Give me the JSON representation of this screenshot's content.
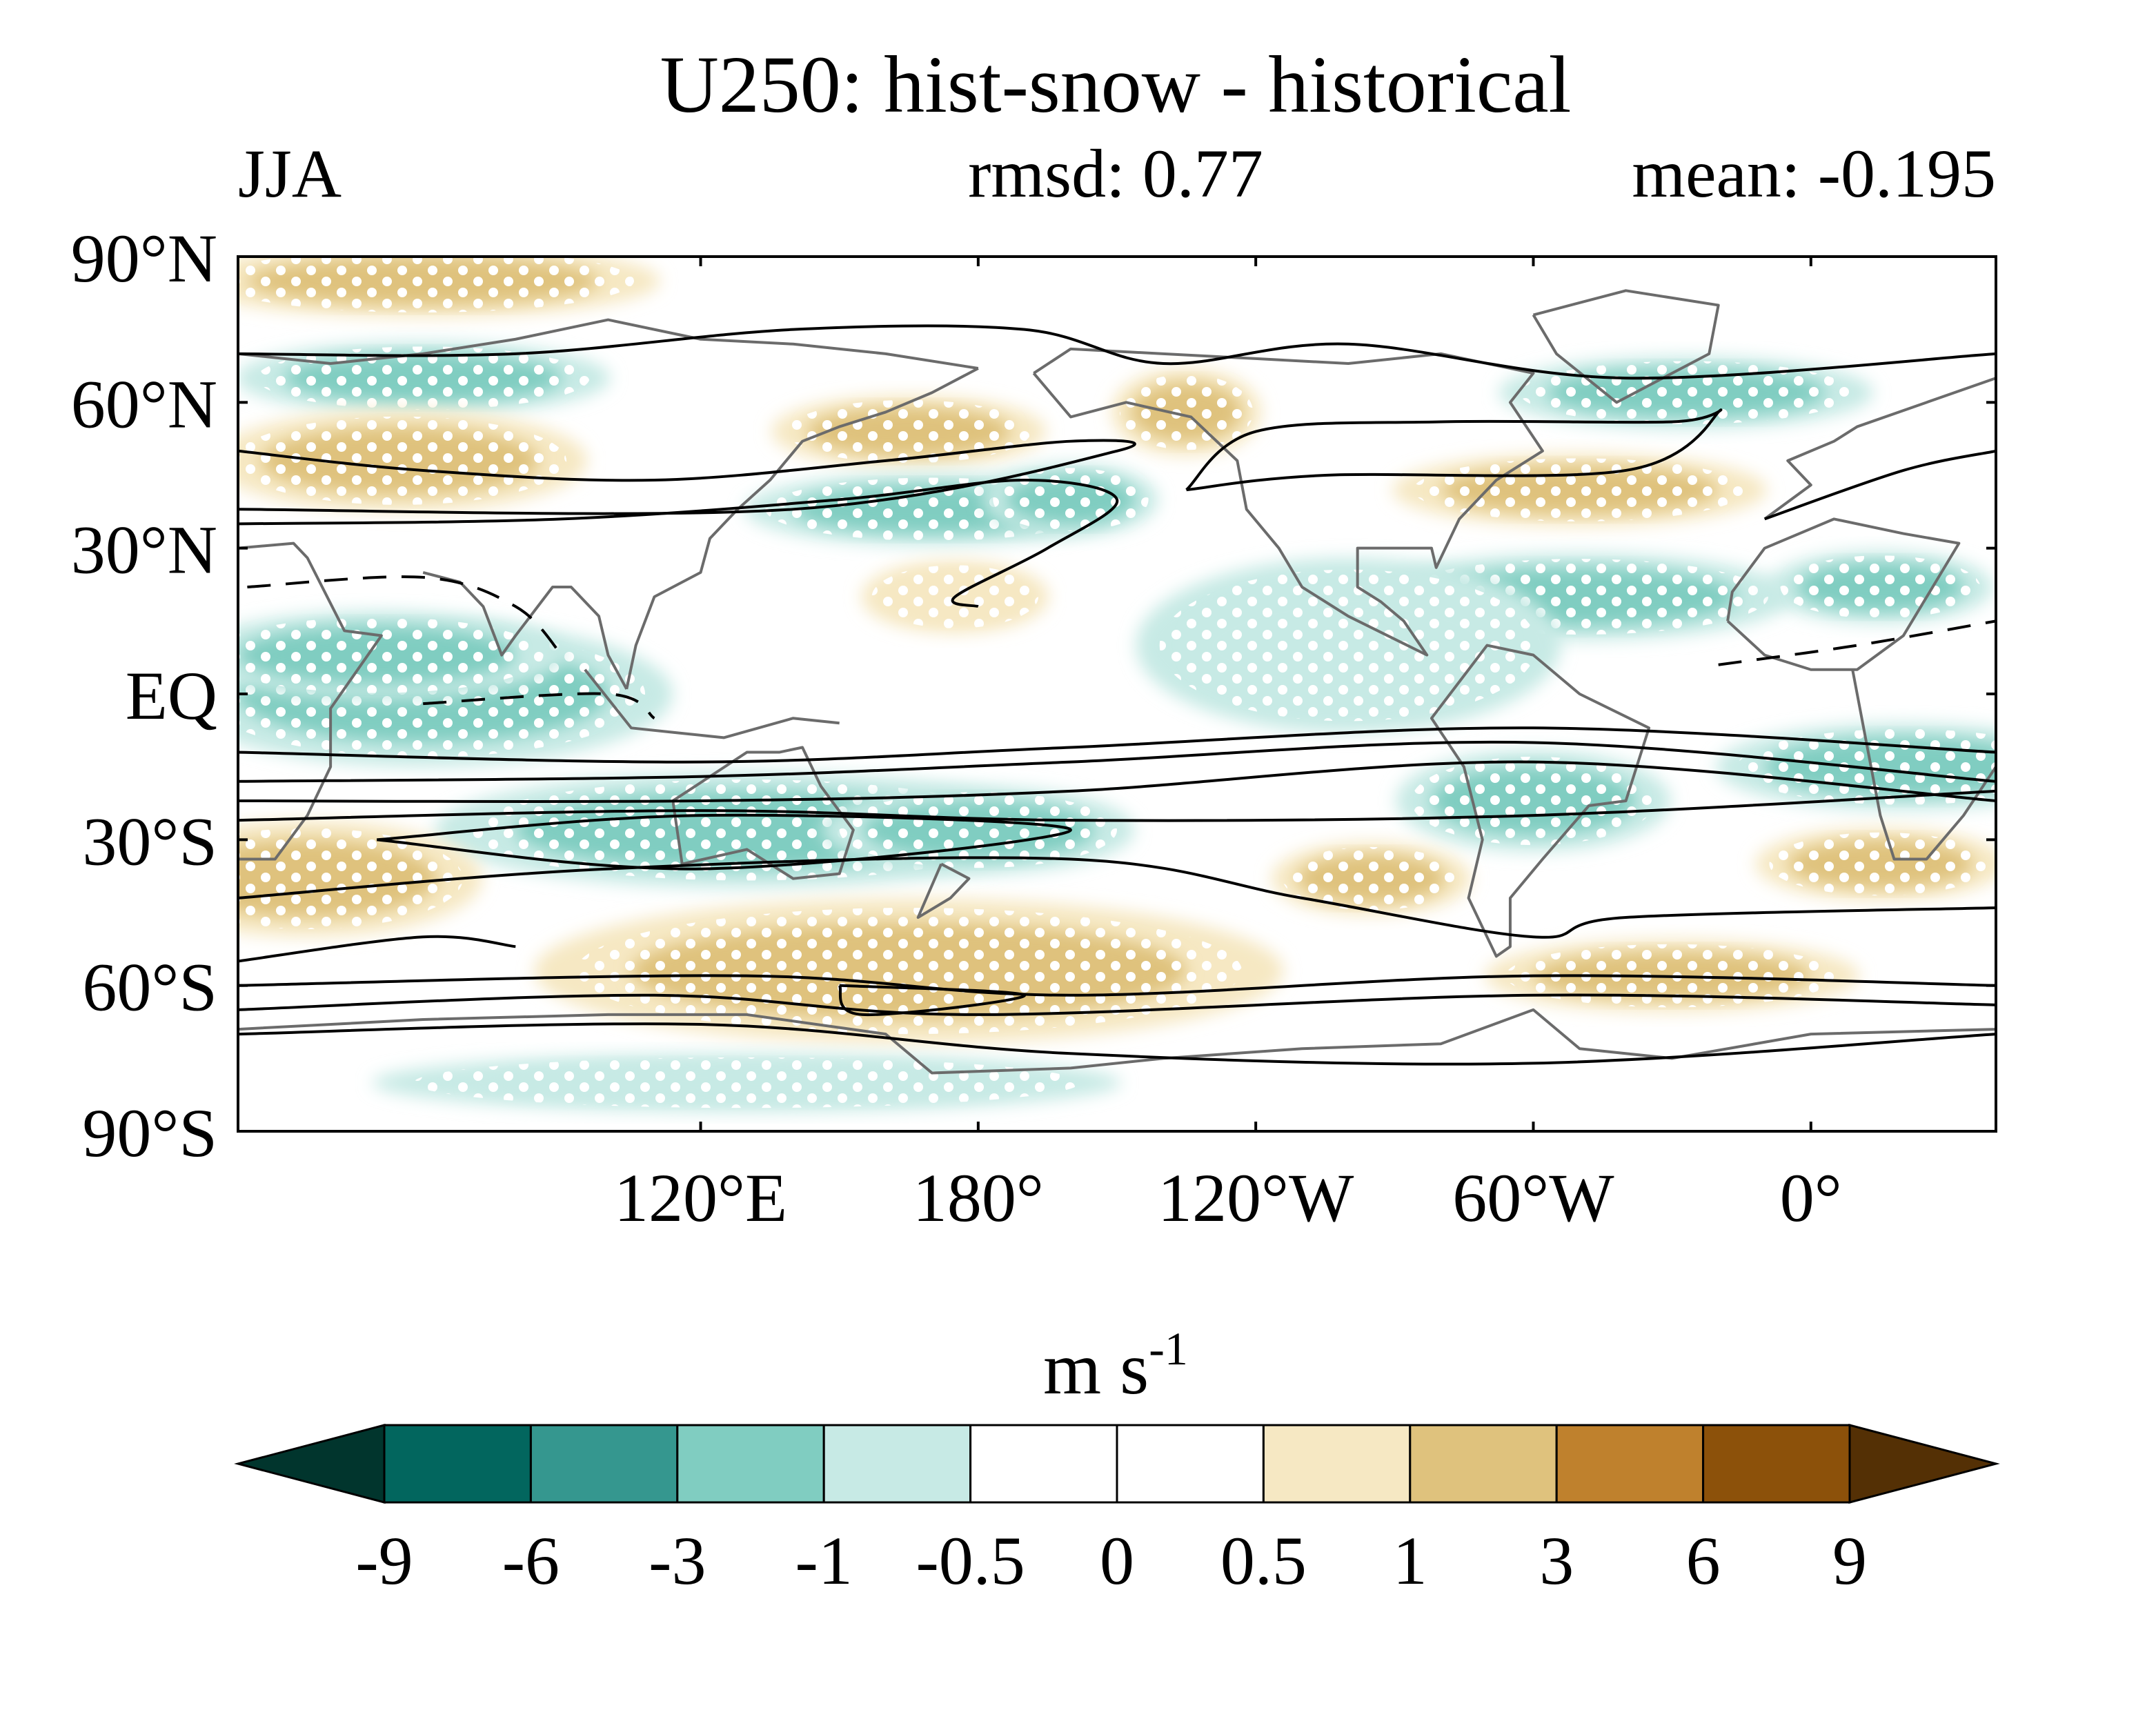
{
  "chart_data": {
    "type": "heatmap",
    "title": "U250: hist-snow - historical",
    "season": "JJA",
    "stats": {
      "rmsd_label": "rmsd: 0.77",
      "mean_label": "mean: -0.195"
    },
    "projection": "cylindrical-equidistant, centered on 150°W (map spans 20°E eastward to 40°E)",
    "lon_range": [
      20,
      400
    ],
    "lat_range": [
      -90,
      90
    ],
    "y_ticks": [
      {
        "lat": 90,
        "label": "90°N"
      },
      {
        "lat": 60,
        "label": "60°N"
      },
      {
        "lat": 30,
        "label": "30°N"
      },
      {
        "lat": 0,
        "label": "EQ"
      },
      {
        "lat": -30,
        "label": "30°S"
      },
      {
        "lat": -60,
        "label": "60°S"
      },
      {
        "lat": -90,
        "label": "90°S"
      }
    ],
    "x_ticks": [
      {
        "lon": 120,
        "label": "120°E"
      },
      {
        "lon": 180,
        "label": "180°"
      },
      {
        "lon": 240,
        "label": "120°W"
      },
      {
        "lon": 300,
        "label": "60°W"
      },
      {
        "lon": 360,
        "label": "0°"
      }
    ],
    "colorbar": {
      "units_main": "m s",
      "units_sup": "-1",
      "levels": [
        "-9",
        "-6",
        "-3",
        "-1",
        "-0.5",
        "0",
        "0.5",
        "1",
        "3",
        "6",
        "9"
      ],
      "colors": [
        "#01352d",
        "#02665e",
        "#35978f",
        "#80cdc1",
        "#c7eae5",
        "#ffffff",
        "#ffffff",
        "#f6e8c3",
        "#dfc27d",
        "#bf812d",
        "#8c510a",
        "#543005"
      ]
    },
    "anomaly_regions": [
      {
        "lon": 60,
        "lat": 85,
        "rx": 38,
        "ry": 5,
        "value": 1.2,
        "stippled": true
      },
      {
        "lon": 60,
        "lat": 65,
        "rx": 30,
        "ry": 5,
        "value": -2.0,
        "stippled": true
      },
      {
        "lon": 55,
        "lat": 48,
        "rx": 30,
        "ry": 7,
        "value": 2.0,
        "stippled": true
      },
      {
        "lon": 165,
        "lat": 54,
        "rx": 22,
        "ry": 5,
        "value": 1.5,
        "stippled": true
      },
      {
        "lon": 225,
        "lat": 58,
        "rx": 12,
        "ry": 6,
        "value": 1.5,
        "stippled": true
      },
      {
        "lon": 170,
        "lat": 38,
        "rx": 30,
        "ry": 5,
        "value": -2.0,
        "stippled": true
      },
      {
        "lon": 200,
        "lat": 40,
        "rx": 14,
        "ry": 5,
        "value": -2.5,
        "stippled": true
      },
      {
        "lon": 175,
        "lat": 20,
        "rx": 15,
        "ry": 5,
        "value": 0.8,
        "stippled": true
      },
      {
        "lon": 333,
        "lat": 62,
        "rx": 30,
        "ry": 5,
        "value": -2.0,
        "stippled": true
      },
      {
        "lon": 310,
        "lat": 42,
        "rx": 30,
        "ry": 5,
        "value": 1.5,
        "stippled": true
      },
      {
        "lon": 310,
        "lat": 20,
        "rx": 34,
        "ry": 6,
        "value": -2.0,
        "stippled": true
      },
      {
        "lon": 260,
        "lat": 10,
        "rx": 34,
        "ry": 12,
        "value": -0.8,
        "stippled": true
      },
      {
        "lon": 375,
        "lat": 22,
        "rx": 18,
        "ry": 5,
        "value": -2.0,
        "stippled": true
      },
      {
        "lon": 60,
        "lat": 0,
        "rx": 40,
        "ry": 10,
        "value": -2.5,
        "stippled": true
      },
      {
        "lon": 50,
        "lat": 8,
        "rx": 30,
        "ry": 6,
        "value": -2.0,
        "stippled": true
      },
      {
        "lon": 130,
        "lat": -28,
        "rx": 50,
        "ry": 8,
        "value": -1.5,
        "stippled": true
      },
      {
        "lon": 180,
        "lat": -28,
        "rx": 25,
        "ry": 6,
        "value": -2.0,
        "stippled": true
      },
      {
        "lon": 300,
        "lat": -22,
        "rx": 22,
        "ry": 7,
        "value": -2.0,
        "stippled": true
      },
      {
        "lon": 380,
        "lat": -15,
        "rx": 30,
        "ry": 6,
        "value": -2.0,
        "stippled": true
      },
      {
        "lon": 35,
        "lat": -38,
        "rx": 28,
        "ry": 8,
        "value": 2.0,
        "stippled": true
      },
      {
        "lon": 265,
        "lat": -38,
        "rx": 16,
        "ry": 5,
        "value": 2.0,
        "stippled": true
      },
      {
        "lon": 375,
        "lat": -35,
        "rx": 20,
        "ry": 5,
        "value": 1.5,
        "stippled": true
      },
      {
        "lon": 165,
        "lat": -57,
        "rx": 60,
        "ry": 10,
        "value": 2.0,
        "stippled": true
      },
      {
        "lon": 330,
        "lat": -58,
        "rx": 30,
        "ry": 5,
        "value": 1.5,
        "stippled": true
      },
      {
        "lon": 130,
        "lat": -80,
        "rx": 60,
        "ry": 4,
        "value": -0.8,
        "stippled": true
      }
    ],
    "climatology_contours": [
      {
        "style": "solid",
        "points": [
          [
            20,
            70
          ],
          [
            80,
            70
          ],
          [
            140,
            75
          ],
          [
            190,
            75
          ],
          [
            220,
            68
          ],
          [
            260,
            72
          ],
          [
            320,
            65
          ],
          [
            400,
            70
          ]
        ]
      },
      {
        "style": "solid",
        "points": [
          [
            20,
            50
          ],
          [
            60,
            46
          ],
          [
            110,
            44
          ],
          [
            160,
            48
          ],
          [
            200,
            52
          ],
          [
            210,
            50
          ],
          [
            140,
            38
          ],
          [
            20,
            38
          ]
        ]
      },
      {
        "style": "solid",
        "points": [
          [
            20,
            35
          ],
          [
            90,
            36
          ],
          [
            150,
            40
          ],
          [
            190,
            44
          ],
          [
            210,
            40
          ],
          [
            195,
            30
          ],
          [
            175,
            20
          ],
          [
            180,
            18
          ]
        ]
      },
      {
        "style": "solid",
        "points": [
          [
            225,
            42
          ],
          [
            240,
            54
          ],
          [
            280,
            56
          ],
          [
            330,
            56
          ],
          [
            340,
            58
          ],
          [
            320,
            46
          ],
          [
            255,
            45
          ],
          [
            225,
            42
          ]
        ]
      },
      {
        "style": "solid",
        "points": [
          [
            350,
            36
          ],
          [
            380,
            46
          ],
          [
            400,
            50
          ]
        ]
      },
      {
        "style": "dashed",
        "points": [
          [
            22,
            22
          ],
          [
            60,
            24
          ],
          [
            80,
            18
          ],
          [
            90,
            8
          ]
        ]
      },
      {
        "style": "dashed",
        "points": [
          [
            60,
            -2
          ],
          [
            100,
            0
          ],
          [
            110,
            -5
          ]
        ]
      },
      {
        "style": "dashed",
        "points": [
          [
            340,
            6
          ],
          [
            370,
            10
          ],
          [
            400,
            15
          ]
        ]
      },
      {
        "style": "solid",
        "points": [
          [
            20,
            -12
          ],
          [
            120,
            -14
          ],
          [
            200,
            -11
          ],
          [
            300,
            -7
          ],
          [
            400,
            -12
          ]
        ]
      },
      {
        "style": "solid",
        "points": [
          [
            20,
            -18
          ],
          [
            120,
            -17
          ],
          [
            200,
            -14
          ],
          [
            300,
            -10
          ],
          [
            400,
            -18
          ]
        ]
      },
      {
        "style": "solid",
        "points": [
          [
            20,
            -22
          ],
          [
            120,
            -22
          ],
          [
            200,
            -20
          ],
          [
            300,
            -14
          ],
          [
            400,
            -22
          ]
        ]
      },
      {
        "style": "solid",
        "points": [
          [
            20,
            -26
          ],
          [
            120,
            -24
          ],
          [
            200,
            -26
          ],
          [
            300,
            -25
          ],
          [
            400,
            -20
          ]
        ]
      },
      {
        "style": "solid",
        "points": [
          [
            50,
            -30
          ],
          [
            120,
            -25
          ],
          [
            200,
            -28
          ],
          [
            120,
            -36
          ],
          [
            50,
            -30
          ]
        ]
      },
      {
        "style": "solid",
        "points": [
          [
            20,
            -42
          ],
          [
            100,
            -36
          ],
          [
            200,
            -34
          ],
          [
            250,
            -42
          ],
          [
            300,
            -50
          ],
          [
            320,
            -46
          ],
          [
            400,
            -44
          ]
        ]
      },
      {
        "style": "solid",
        "points": [
          [
            20,
            -55
          ],
          [
            60,
            -50
          ],
          [
            80,
            -52
          ]
        ]
      },
      {
        "style": "solid",
        "points": [
          [
            20,
            -60
          ],
          [
            130,
            -58
          ],
          [
            200,
            -62
          ],
          [
            300,
            -58
          ],
          [
            400,
            -60
          ]
        ]
      },
      {
        "style": "solid",
        "points": [
          [
            20,
            -65
          ],
          [
            110,
            -62
          ],
          [
            180,
            -66
          ],
          [
            300,
            -62
          ],
          [
            400,
            -64
          ]
        ]
      },
      {
        "style": "solid",
        "points": [
          [
            20,
            -70
          ],
          [
            120,
            -68
          ],
          [
            200,
            -74
          ],
          [
            300,
            -76
          ],
          [
            400,
            -70
          ]
        ]
      },
      {
        "style": "solid",
        "points": [
          [
            150,
            -60
          ],
          [
            190,
            -62
          ],
          [
            155,
            -66
          ],
          [
            150,
            -60
          ]
        ]
      }
    ],
    "stippling": "hatched white dots mark statistically significant anomalies"
  }
}
